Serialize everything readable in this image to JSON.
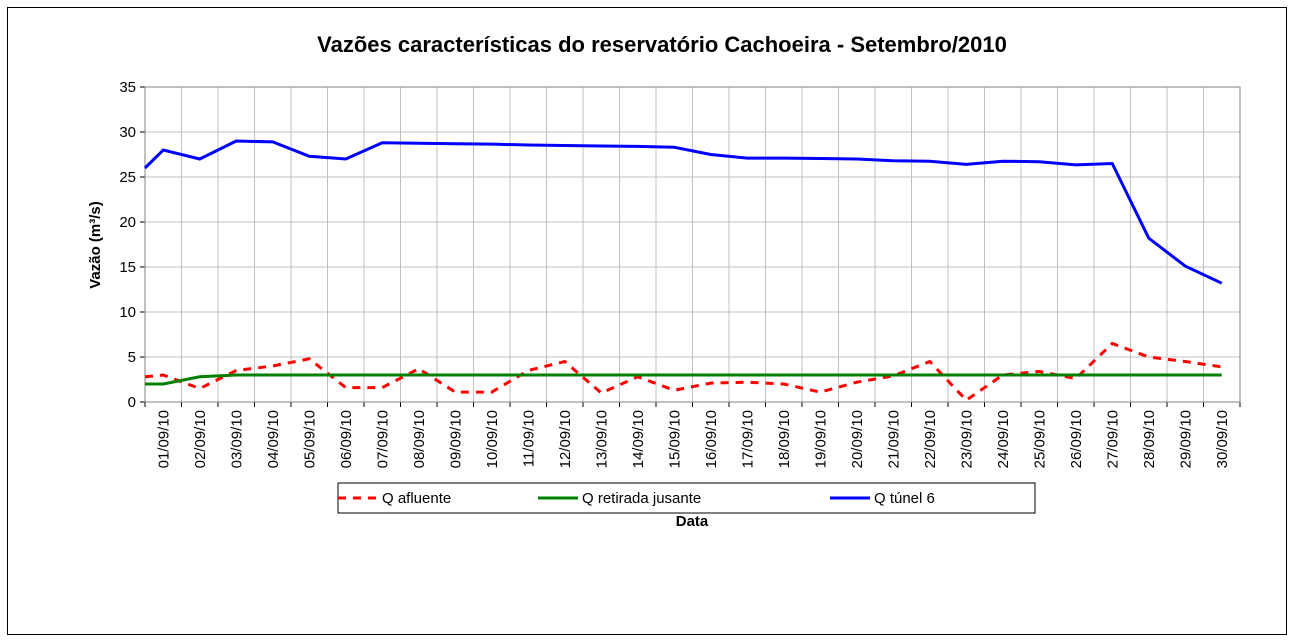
{
  "chart_data": {
    "type": "line",
    "title": "Vazões características do reservatório Cachoeira - Setembro/2010",
    "x_label": "Data",
    "y_label": "Vazão (m³/s)",
    "categories": [
      null,
      "01/09/10",
      "02/09/10",
      "03/09/10",
      "04/09/10",
      "05/09/10",
      "06/09/10",
      "07/09/10",
      "08/09/10",
      "09/09/10",
      "10/09/10",
      "11/09/10",
      "12/09/10",
      "13/09/10",
      "14/09/10",
      "15/09/10",
      "16/09/10",
      "17/09/10",
      "18/09/10",
      "19/09/10",
      "20/09/10",
      "21/09/10",
      "22/09/10",
      "23/09/10",
      "24/09/10",
      "25/09/10",
      "26/09/10",
      "27/09/10",
      "28/09/10",
      "29/09/10",
      "30/09/10"
    ],
    "series": [
      {
        "name": "Q afluente",
        "color": "#ff0000",
        "dashed": true,
        "values": [
          2.8,
          3,
          1.5,
          3.5,
          4,
          4.8,
          1.6,
          1.6,
          3.7,
          1.1,
          1.1,
          3.5,
          4.5,
          1.0,
          2.8,
          1.3,
          2.1,
          2.2,
          2,
          1.1,
          2.2,
          2.9,
          4.5,
          0.2,
          3,
          3.4,
          2.6,
          6.5,
          5,
          4.5,
          3.9
        ]
      },
      {
        "name": "Q retirada jusante",
        "color": "#008000",
        "dashed": false,
        "values": [
          2,
          2,
          2.8,
          3,
          3,
          3,
          3,
          3,
          3,
          3,
          3,
          3,
          3,
          3,
          3,
          3,
          3,
          3,
          3,
          3,
          3,
          3,
          3,
          3,
          3,
          3,
          3,
          3,
          3,
          3,
          3
        ]
      },
      {
        "name": "Q túnel 6",
        "color": "#0000ff",
        "dashed": false,
        "values": [
          26,
          28,
          27,
          29,
          28.9,
          27.3,
          27,
          28.8,
          28.75,
          28.7,
          28.65,
          28.55,
          28.5,
          28.45,
          28.4,
          28.3,
          27.5,
          27.1,
          27.1,
          27.05,
          27,
          26.8,
          26.75,
          26.4,
          26.75,
          26.7,
          26.35,
          26.5,
          18.2,
          15.1,
          13.2
        ]
      }
    ],
    "ylim": [
      0,
      35
    ],
    "yticks": [
      0,
      5,
      10,
      15,
      20,
      25,
      30,
      35
    ],
    "grid": true,
    "legend": "bottom"
  }
}
